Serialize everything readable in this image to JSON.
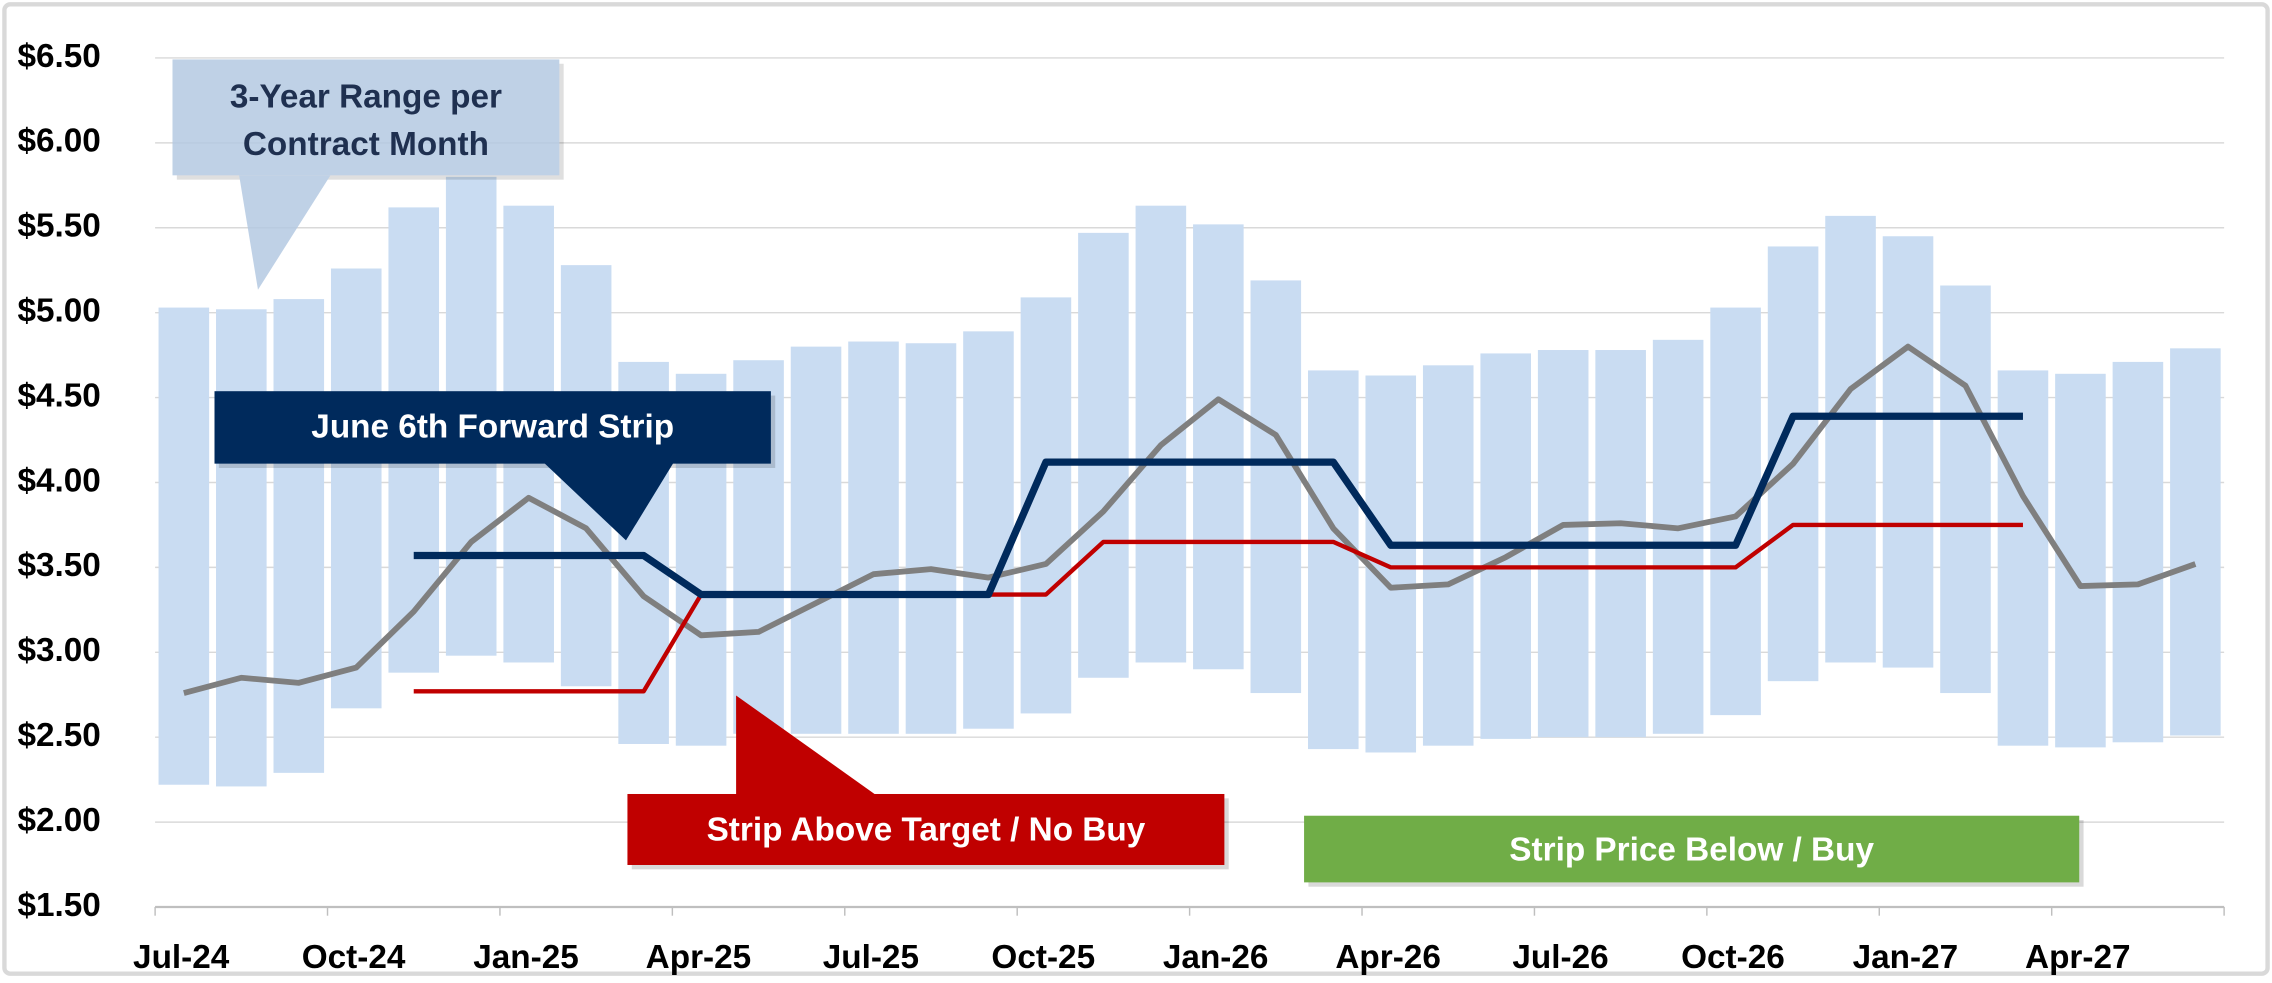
{
  "chart_data": {
    "type": "range-bar-line",
    "categories": [
      "Jul-24",
      null,
      null,
      "Oct-24",
      null,
      null,
      "Jan-25",
      null,
      null,
      "Apr-25",
      null,
      null,
      "Jul-25",
      null,
      null,
      "Oct-25",
      null,
      null,
      "Jan-26",
      null,
      null,
      "Apr-26",
      null,
      null,
      "Jul-26",
      null,
      null,
      "Oct-26",
      null,
      null,
      "Jan-27",
      null,
      null,
      "Apr-27",
      null,
      null
    ],
    "ranges": {
      "color": "#c9dcf2",
      "low": [
        2.22,
        2.21,
        2.29,
        2.67,
        2.88,
        2.98,
        2.94,
        2.8,
        2.46,
        2.45,
        2.52,
        2.52,
        2.52,
        2.52,
        2.55,
        2.64,
        2.85,
        2.94,
        2.9,
        2.76,
        2.43,
        2.41,
        2.45,
        2.49,
        2.5,
        2.5,
        2.52,
        2.63,
        2.83,
        2.94,
        2.91,
        2.76,
        2.45,
        2.44,
        2.47,
        2.51
      ],
      "high": [
        5.03,
        5.02,
        5.08,
        5.26,
        5.62,
        5.8,
        5.63,
        5.28,
        4.71,
        4.64,
        4.72,
        4.8,
        4.83,
        4.82,
        4.89,
        5.09,
        5.47,
        5.63,
        5.52,
        5.19,
        4.66,
        4.63,
        4.69,
        4.76,
        4.78,
        4.78,
        4.84,
        5.03,
        5.39,
        5.57,
        5.45,
        5.16,
        4.66,
        4.64,
        4.71,
        4.79
      ]
    },
    "series": [
      {
        "color": "#7f7f7f",
        "values": [
          2.76,
          2.85,
          2.82,
          2.91,
          3.24,
          3.65,
          3.91,
          3.73,
          3.33,
          3.1,
          3.12,
          3.29,
          3.46,
          3.49,
          3.44,
          3.52,
          3.83,
          4.22,
          4.49,
          4.28,
          3.73,
          3.38,
          3.4,
          3.56,
          3.75,
          3.76,
          3.73,
          3.8,
          4.11,
          4.55,
          4.8,
          4.57,
          3.92,
          3.39,
          3.4,
          3.52
        ]
      },
      {
        "color": "#c00000",
        "step": true,
        "values": [
          null,
          null,
          null,
          null,
          2.77,
          2.77,
          2.77,
          2.77,
          2.77,
          3.34,
          3.34,
          3.34,
          3.34,
          3.34,
          3.34,
          3.34,
          3.65,
          3.65,
          3.65,
          3.65,
          3.65,
          3.5,
          3.5,
          3.5,
          3.5,
          3.5,
          3.5,
          3.5,
          3.75,
          3.75,
          3.75,
          3.75,
          3.75,
          null,
          null,
          null
        ]
      },
      {
        "color": "#002a5c",
        "step": true,
        "values": [
          null,
          null,
          null,
          null,
          3.57,
          3.57,
          3.57,
          3.57,
          3.57,
          3.34,
          3.34,
          3.34,
          3.34,
          3.34,
          3.34,
          4.12,
          4.12,
          4.12,
          4.12,
          4.12,
          4.12,
          3.63,
          3.63,
          3.63,
          3.63,
          3.63,
          3.63,
          3.63,
          4.39,
          4.39,
          4.39,
          4.39,
          4.39,
          null,
          null,
          null
        ]
      }
    ],
    "ylim": [
      1.5,
      6.5
    ],
    "yticks": [
      {
        "value": 1.5,
        "label": "$1.50"
      },
      {
        "value": 2,
        "label": "$2.00"
      },
      {
        "value": 2.5,
        "label": "$2.50"
      },
      {
        "value": 3,
        "label": "$3.00"
      },
      {
        "value": 3.5,
        "label": "$3.50"
      },
      {
        "value": 4,
        "label": "$4.00"
      },
      {
        "value": 4.5,
        "label": "$4.50"
      },
      {
        "value": 5,
        "label": "$5.00"
      },
      {
        "value": 5.5,
        "label": "$5.50"
      },
      {
        "value": 6,
        "label": "$6.00"
      },
      {
        "value": 6.5,
        "label": "$6.50"
      }
    ],
    "grid": true,
    "annotations": [
      {
        "lines": [
          "3-Year Range per",
          "Contract Month"
        ],
        "color": "#b4c9e2",
        "text_color": "#1f3050"
      },
      {
        "lines": [
          "June 6th Forward Strip"
        ],
        "color": "#002a5c",
        "text_color": "#ffffff"
      },
      {
        "lines": [
          "Strip Above Target / No Buy"
        ],
        "color": "#c00000",
        "text_color": "#ffffff"
      },
      {
        "lines": [
          "Strip Price Below / Buy"
        ],
        "color": "#70ad47",
        "text_color": "#ffffff"
      }
    ]
  }
}
